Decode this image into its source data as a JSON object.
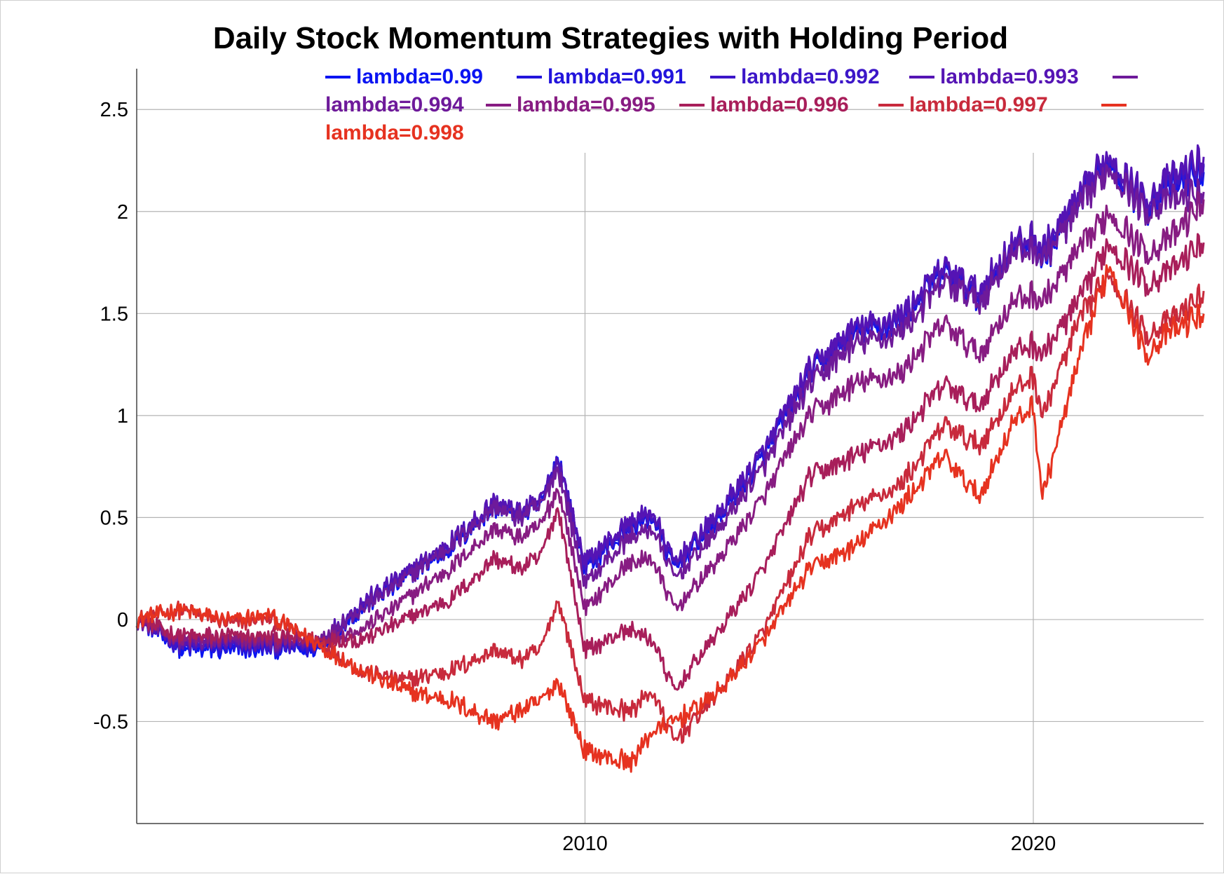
{
  "chart_data": {
    "type": "line",
    "title": "Daily Stock Momentum Strategies with Holding Period",
    "xlabel": "",
    "ylabel": "",
    "x_ticks": [
      "2010",
      "2020"
    ],
    "y_ticks": [
      "2.5",
      "2",
      "1.5",
      "1",
      "0.5",
      "0",
      "-0.5"
    ],
    "xlim": [
      2000.0,
      2023.8
    ],
    "ylim": [
      -1.0,
      2.7
    ],
    "grid": true,
    "legend_position": "top",
    "x": [
      2000.0,
      2001.0,
      2002.0,
      2003.0,
      2004.0,
      2005.0,
      2006.0,
      2007.0,
      2008.0,
      2008.5,
      2009.0,
      2009.4,
      2010.0,
      2011.0,
      2011.5,
      2012.0,
      2013.0,
      2014.0,
      2015.0,
      2016.0,
      2017.0,
      2018.0,
      2018.8,
      2019.5,
      2020.0,
      2020.2,
      2021.0,
      2021.7,
      2022.5,
      2023.0,
      2023.8
    ],
    "series": [
      {
        "name": "lambda=0.99",
        "color": "#0a14f2",
        "values": [
          0.0,
          -0.15,
          -0.15,
          -0.15,
          -0.15,
          0.05,
          0.2,
          0.35,
          0.55,
          0.5,
          0.55,
          0.8,
          0.25,
          0.45,
          0.5,
          0.25,
          0.5,
          0.8,
          1.2,
          1.4,
          1.45,
          1.7,
          1.55,
          1.8,
          1.85,
          1.75,
          2.0,
          2.25,
          2.0,
          2.1,
          2.2
        ]
      },
      {
        "name": "lambda=0.991",
        "color": "#2214dc",
        "values": [
          0.0,
          -0.14,
          -0.14,
          -0.14,
          -0.14,
          0.06,
          0.21,
          0.36,
          0.56,
          0.51,
          0.56,
          0.8,
          0.26,
          0.46,
          0.51,
          0.26,
          0.51,
          0.81,
          1.21,
          1.41,
          1.46,
          1.71,
          1.57,
          1.81,
          1.86,
          1.78,
          2.02,
          2.26,
          2.02,
          2.12,
          2.22
        ]
      },
      {
        "name": "lambda=0.992",
        "color": "#3c16c8",
        "values": [
          0.0,
          -0.13,
          -0.13,
          -0.13,
          -0.13,
          0.07,
          0.22,
          0.37,
          0.57,
          0.52,
          0.57,
          0.79,
          0.27,
          0.47,
          0.52,
          0.27,
          0.52,
          0.82,
          1.22,
          1.42,
          1.47,
          1.72,
          1.59,
          1.82,
          1.87,
          1.8,
          2.04,
          2.27,
          2.04,
          2.14,
          2.24
        ]
      },
      {
        "name": "lambda=0.993",
        "color": "#5514b4",
        "values": [
          0.0,
          -0.12,
          -0.12,
          -0.12,
          -0.12,
          0.08,
          0.23,
          0.38,
          0.58,
          0.53,
          0.58,
          0.78,
          0.28,
          0.48,
          0.53,
          0.28,
          0.53,
          0.83,
          1.23,
          1.43,
          1.48,
          1.73,
          1.61,
          1.83,
          1.88,
          1.82,
          2.06,
          2.28,
          2.06,
          2.16,
          2.26
        ]
      },
      {
        "name": "lambda=0.994",
        "color": "#6e1a9a",
        "values": [
          0.0,
          -0.11,
          -0.11,
          -0.11,
          -0.11,
          0.05,
          0.2,
          0.36,
          0.55,
          0.5,
          0.55,
          0.75,
          0.18,
          0.4,
          0.45,
          0.2,
          0.45,
          0.75,
          1.15,
          1.35,
          1.4,
          1.65,
          1.55,
          1.78,
          1.82,
          1.76,
          2.0,
          2.22,
          2.0,
          2.05,
          2.1
        ]
      },
      {
        "name": "lambda=0.995",
        "color": "#871c82",
        "values": [
          0.0,
          -0.1,
          -0.1,
          -0.1,
          -0.1,
          -0.05,
          0.1,
          0.25,
          0.45,
          0.4,
          0.45,
          0.65,
          0.05,
          0.28,
          0.3,
          0.05,
          0.3,
          0.6,
          1.0,
          1.15,
          1.2,
          1.45,
          1.3,
          1.55,
          1.6,
          1.55,
          1.8,
          2.0,
          1.8,
          1.85,
          2.05
        ]
      },
      {
        "name": "lambda=0.996",
        "color": "#a81e5a",
        "values": [
          0.0,
          -0.08,
          -0.08,
          -0.08,
          -0.1,
          -0.1,
          0.0,
          0.1,
          0.3,
          0.25,
          0.3,
          0.55,
          -0.15,
          -0.05,
          -0.1,
          -0.35,
          -0.05,
          0.25,
          0.7,
          0.8,
          0.9,
          1.15,
          1.05,
          1.3,
          1.35,
          1.3,
          1.55,
          1.85,
          1.65,
          1.7,
          1.85
        ]
      },
      {
        "name": "lambda=0.997",
        "color": "#c82a3c",
        "values": [
          0.0,
          0.05,
          -0.02,
          0.0,
          -0.1,
          -0.25,
          -0.3,
          -0.25,
          -0.15,
          -0.2,
          -0.15,
          0.1,
          -0.4,
          -0.45,
          -0.35,
          -0.6,
          -0.35,
          -0.05,
          0.4,
          0.55,
          0.65,
          0.95,
          0.85,
          1.1,
          1.2,
          1.0,
          1.45,
          1.7,
          1.4,
          1.45,
          1.6
        ]
      },
      {
        "name": "lambda=0.998",
        "color": "#e63220",
        "values": [
          0.0,
          0.05,
          0.0,
          0.02,
          -0.12,
          -0.25,
          -0.35,
          -0.4,
          -0.5,
          -0.45,
          -0.4,
          -0.3,
          -0.65,
          -0.7,
          -0.55,
          -0.5,
          -0.35,
          -0.1,
          0.25,
          0.35,
          0.55,
          0.8,
          0.6,
          0.95,
          1.05,
          0.6,
          1.25,
          1.75,
          1.3,
          1.4,
          1.5
        ]
      }
    ]
  }
}
